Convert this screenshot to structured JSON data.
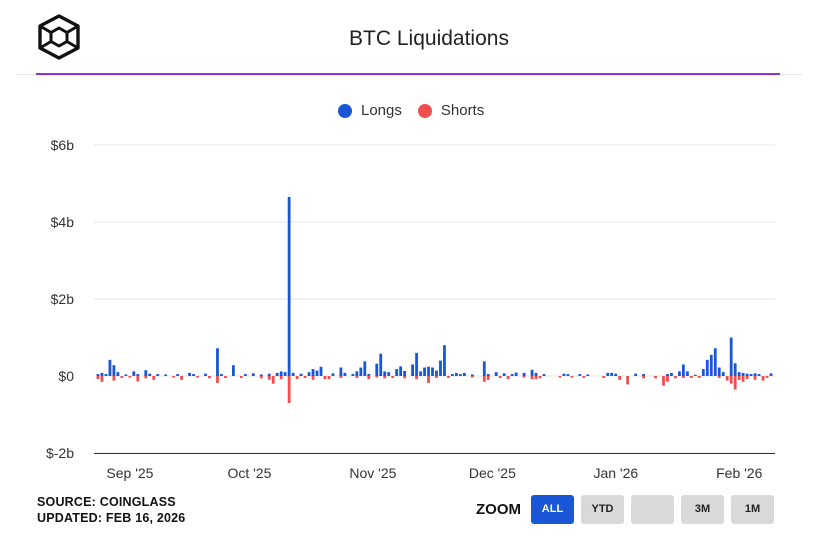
{
  "header": {
    "title": "BTC Liquidations",
    "logo_icon": "cube-logo-icon"
  },
  "legend": [
    {
      "name": "Longs",
      "color": "#1a56d6"
    },
    {
      "name": "Shorts",
      "color": "#f04e4e"
    }
  ],
  "footer": {
    "source": "SOURCE: COINGLASS",
    "updated": "UPDATED: FEB 16, 2026"
  },
  "zoom": {
    "label": "ZOOM",
    "buttons": [
      {
        "label": "ALL",
        "active": true
      },
      {
        "label": "YTD",
        "active": false
      },
      {
        "label": "",
        "active": false
      },
      {
        "label": "3M",
        "active": false
      },
      {
        "label": "1M",
        "active": false
      }
    ]
  },
  "chart_data": {
    "type": "bar",
    "title": "BTC Liquidations",
    "yunit": "billion USD",
    "ylim": [
      -2,
      6
    ],
    "yticks": [
      -2,
      0,
      2,
      4,
      6
    ],
    "ytick_labels": [
      "$-2b",
      "$0",
      "$2b",
      "$4b",
      "$6b"
    ],
    "x_range": [
      "2025-08-29",
      "2026-02-16"
    ],
    "xticks": [
      {
        "date": "2025-09-01",
        "label": "Sep '25"
      },
      {
        "date": "2025-10-01",
        "label": "Oct '25"
      },
      {
        "date": "2025-11-01",
        "label": "Nov '25"
      },
      {
        "date": "2025-12-01",
        "label": "Dec '25"
      },
      {
        "date": "2026-01-01",
        "label": "Jan '26"
      },
      {
        "date": "2026-02-01",
        "label": "Feb '26"
      }
    ],
    "grid": true,
    "legend_position": "top-center",
    "series": [
      {
        "name": "Longs",
        "color": "#1a56d6",
        "values": [
          [
            "2025-08-30",
            0.05
          ],
          [
            "2025-08-31",
            0.08
          ],
          [
            "2025-09-01",
            0.05
          ],
          [
            "2025-09-02",
            0.42
          ],
          [
            "2025-09-03",
            0.28
          ],
          [
            "2025-09-04",
            0.1
          ],
          [
            "2025-09-06",
            0.04
          ],
          [
            "2025-09-08",
            0.12
          ],
          [
            "2025-09-09",
            0.05
          ],
          [
            "2025-09-11",
            0.15
          ],
          [
            "2025-09-12",
            0.06
          ],
          [
            "2025-09-14",
            0.05
          ],
          [
            "2025-09-16",
            0.04
          ],
          [
            "2025-09-19",
            0.05
          ],
          [
            "2025-09-22",
            0.08
          ],
          [
            "2025-09-23",
            0.05
          ],
          [
            "2025-09-26",
            0.06
          ],
          [
            "2025-09-29",
            0.72
          ],
          [
            "2025-09-30",
            0.05
          ],
          [
            "2025-10-03",
            0.28
          ],
          [
            "2025-10-06",
            0.05
          ],
          [
            "2025-10-08",
            0.07
          ],
          [
            "2025-10-10",
            0.04
          ],
          [
            "2025-10-12",
            0.06
          ],
          [
            "2025-10-14",
            0.08
          ],
          [
            "2025-10-15",
            0.12
          ],
          [
            "2025-10-16",
            0.1
          ],
          [
            "2025-10-17",
            4.65
          ],
          [
            "2025-10-18",
            0.08
          ],
          [
            "2025-10-20",
            0.06
          ],
          [
            "2025-10-22",
            0.1
          ],
          [
            "2025-10-23",
            0.18
          ],
          [
            "2025-10-24",
            0.14
          ],
          [
            "2025-10-25",
            0.24
          ],
          [
            "2025-10-28",
            0.07
          ],
          [
            "2025-10-30",
            0.22
          ],
          [
            "2025-10-31",
            0.08
          ],
          [
            "2025-11-02",
            0.05
          ],
          [
            "2025-11-03",
            0.12
          ],
          [
            "2025-11-04",
            0.22
          ],
          [
            "2025-11-05",
            0.38
          ],
          [
            "2025-11-06",
            0.05
          ],
          [
            "2025-11-08",
            0.32
          ],
          [
            "2025-11-09",
            0.58
          ],
          [
            "2025-11-10",
            0.12
          ],
          [
            "2025-11-11",
            0.1
          ],
          [
            "2025-11-13",
            0.18
          ],
          [
            "2025-11-14",
            0.25
          ],
          [
            "2025-11-15",
            0.13
          ],
          [
            "2025-11-17",
            0.3
          ],
          [
            "2025-11-18",
            0.6
          ],
          [
            "2025-11-19",
            0.12
          ],
          [
            "2025-11-20",
            0.22
          ],
          [
            "2025-11-21",
            0.24
          ],
          [
            "2025-11-22",
            0.22
          ],
          [
            "2025-11-23",
            0.14
          ],
          [
            "2025-11-24",
            0.4
          ],
          [
            "2025-11-25",
            0.8
          ],
          [
            "2025-11-27",
            0.05
          ],
          [
            "2025-11-28",
            0.08
          ],
          [
            "2025-11-29",
            0.05
          ],
          [
            "2025-11-30",
            0.08
          ],
          [
            "2025-12-02",
            0.04
          ],
          [
            "2025-12-05",
            0.38
          ],
          [
            "2025-12-06",
            0.05
          ],
          [
            "2025-12-08",
            0.1
          ],
          [
            "2025-12-10",
            0.07
          ],
          [
            "2025-12-12",
            0.05
          ],
          [
            "2025-12-13",
            0.09
          ],
          [
            "2025-12-15",
            0.08
          ],
          [
            "2025-12-17",
            0.16
          ],
          [
            "2025-12-18",
            0.08
          ],
          [
            "2025-12-20",
            0.05
          ],
          [
            "2025-12-25",
            0.06
          ],
          [
            "2025-12-26",
            0.05
          ],
          [
            "2025-12-29",
            0.05
          ],
          [
            "2025-12-31",
            0.04
          ],
          [
            "2026-01-05",
            0.08
          ],
          [
            "2026-01-06",
            0.08
          ],
          [
            "2026-01-07",
            0.06
          ],
          [
            "2026-01-12",
            0.06
          ],
          [
            "2026-01-14",
            0.05
          ],
          [
            "2026-01-20",
            0.05
          ],
          [
            "2026-01-21",
            0.08
          ],
          [
            "2026-01-23",
            0.12
          ],
          [
            "2026-01-24",
            0.3
          ],
          [
            "2026-01-25",
            0.12
          ],
          [
            "2026-01-27",
            0.03
          ],
          [
            "2026-01-29",
            0.18
          ],
          [
            "2026-01-30",
            0.42
          ],
          [
            "2026-01-31",
            0.55
          ],
          [
            "2026-02-01",
            0.72
          ],
          [
            "2026-02-02",
            0.22
          ],
          [
            "2026-02-03",
            0.1
          ],
          [
            "2026-02-05",
            1.0
          ],
          [
            "2026-02-06",
            0.33
          ],
          [
            "2026-02-07",
            0.1
          ],
          [
            "2026-02-08",
            0.08
          ],
          [
            "2026-02-09",
            0.06
          ],
          [
            "2026-02-10",
            0.05
          ],
          [
            "2026-02-11",
            0.07
          ],
          [
            "2026-02-12",
            0.05
          ],
          [
            "2026-02-15",
            0.07
          ]
        ]
      },
      {
        "name": "Shorts",
        "color": "#f04e4e",
        "values": [
          [
            "2025-08-30",
            -0.08
          ],
          [
            "2025-08-31",
            -0.15
          ],
          [
            "2025-09-03",
            -0.12
          ],
          [
            "2025-09-05",
            -0.05
          ],
          [
            "2025-09-07",
            -0.04
          ],
          [
            "2025-09-09",
            -0.14
          ],
          [
            "2025-09-11",
            -0.06
          ],
          [
            "2025-09-13",
            -0.1
          ],
          [
            "2025-09-18",
            -0.04
          ],
          [
            "2025-09-20",
            -0.1
          ],
          [
            "2025-09-24",
            -0.04
          ],
          [
            "2025-09-27",
            -0.06
          ],
          [
            "2025-09-29",
            -0.18
          ],
          [
            "2025-10-01",
            -0.05
          ],
          [
            "2025-10-05",
            -0.05
          ],
          [
            "2025-10-10",
            -0.06
          ],
          [
            "2025-10-12",
            -0.1
          ],
          [
            "2025-10-13",
            -0.2
          ],
          [
            "2025-10-15",
            -0.08
          ],
          [
            "2025-10-17",
            -0.7
          ],
          [
            "2025-10-19",
            -0.08
          ],
          [
            "2025-10-21",
            -0.05
          ],
          [
            "2025-10-23",
            -0.1
          ],
          [
            "2025-10-26",
            -0.08
          ],
          [
            "2025-10-27",
            -0.08
          ],
          [
            "2025-10-30",
            -0.05
          ],
          [
            "2025-11-03",
            -0.05
          ],
          [
            "2025-11-06",
            -0.08
          ],
          [
            "2025-11-08",
            -0.04
          ],
          [
            "2025-11-10",
            -0.06
          ],
          [
            "2025-11-12",
            -0.05
          ],
          [
            "2025-11-15",
            -0.06
          ],
          [
            "2025-11-18",
            -0.08
          ],
          [
            "2025-11-21",
            -0.18
          ],
          [
            "2025-11-23",
            -0.05
          ],
          [
            "2025-11-26",
            -0.05
          ],
          [
            "2025-12-02",
            -0.04
          ],
          [
            "2025-12-05",
            -0.15
          ],
          [
            "2025-12-06",
            -0.1
          ],
          [
            "2025-12-09",
            -0.05
          ],
          [
            "2025-12-11",
            -0.08
          ],
          [
            "2025-12-15",
            -0.04
          ],
          [
            "2025-12-17",
            -0.08
          ],
          [
            "2025-12-18",
            -0.08
          ],
          [
            "2025-12-19",
            -0.06
          ],
          [
            "2025-12-24",
            -0.04
          ],
          [
            "2025-12-27",
            -0.04
          ],
          [
            "2025-12-30",
            -0.05
          ],
          [
            "2026-01-04",
            -0.05
          ],
          [
            "2026-01-08",
            -0.1
          ],
          [
            "2026-01-10",
            -0.22
          ],
          [
            "2026-01-14",
            -0.06
          ],
          [
            "2026-01-17",
            -0.06
          ],
          [
            "2026-01-19",
            -0.25
          ],
          [
            "2026-01-20",
            -0.15
          ],
          [
            "2026-01-22",
            -0.06
          ],
          [
            "2026-01-24",
            -0.05
          ],
          [
            "2026-01-26",
            -0.05
          ],
          [
            "2026-01-28",
            -0.05
          ],
          [
            "2026-02-02",
            -0.05
          ],
          [
            "2026-02-04",
            -0.12
          ],
          [
            "2026-02-05",
            -0.2
          ],
          [
            "2026-02-06",
            -0.35
          ],
          [
            "2026-02-07",
            -0.1
          ],
          [
            "2026-02-08",
            -0.15
          ],
          [
            "2026-02-09",
            -0.08
          ],
          [
            "2026-02-11",
            -0.1
          ],
          [
            "2026-02-13",
            -0.12
          ],
          [
            "2026-02-14",
            -0.05
          ]
        ]
      }
    ]
  }
}
